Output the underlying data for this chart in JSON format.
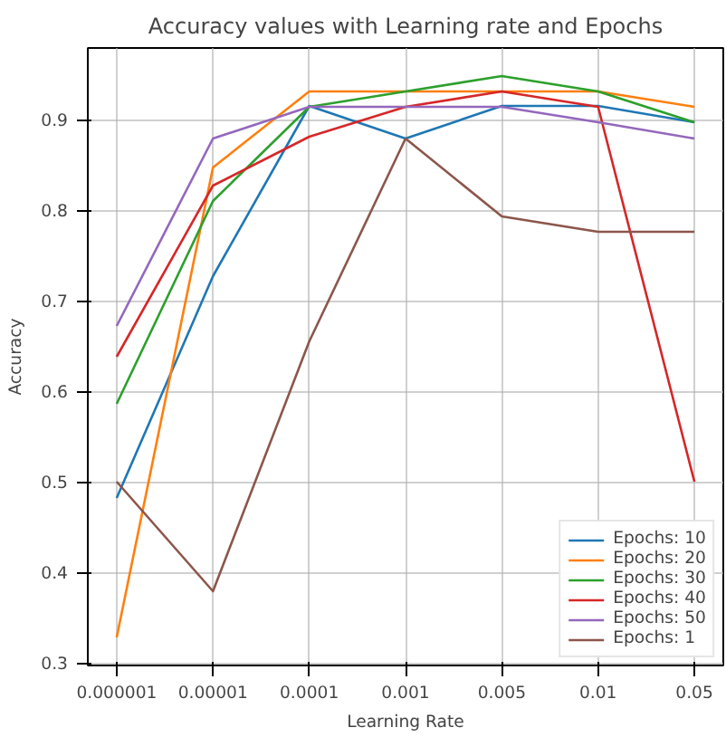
{
  "chart_data": {
    "type": "line",
    "title": "Accuracy values with Learning rate and Epochs",
    "xlabel": "Learning Rate",
    "ylabel": "Accuracy",
    "categories": [
      "0.000001",
      "0.00001",
      "0.0001",
      "0.001",
      "0.005",
      "0.01",
      "0.05"
    ],
    "ylim": [
      0.297,
      0.979
    ],
    "yticks": [
      {
        "value": 0.3,
        "label": "0.3"
      },
      {
        "value": 0.4,
        "label": "0.4"
      },
      {
        "value": 0.5,
        "label": "0.5"
      },
      {
        "value": 0.6,
        "label": "0.6"
      },
      {
        "value": 0.7,
        "label": "0.7"
      },
      {
        "value": 0.8,
        "label": "0.8"
      },
      {
        "value": 0.9,
        "label": "0.9"
      }
    ],
    "grid": true,
    "legend": "bottom right",
    "series": [
      {
        "name": "Epochs: 10",
        "color": "#1f77b4",
        "values": [
          0.482,
          0.727,
          0.915,
          0.879,
          0.915,
          0.915,
          0.897
        ]
      },
      {
        "name": "Epochs: 20",
        "color": "#ff7f0e",
        "values": [
          0.328,
          0.847,
          0.931,
          0.931,
          0.931,
          0.931,
          0.914
        ]
      },
      {
        "name": "Epochs: 30",
        "color": "#2ca02c",
        "values": [
          0.586,
          0.81,
          0.914,
          0.931,
          0.948,
          0.931,
          0.897
        ]
      },
      {
        "name": "Epochs: 40",
        "color": "#d62728",
        "values": [
          0.638,
          0.827,
          0.881,
          0.914,
          0.931,
          0.914,
          0.5
        ]
      },
      {
        "name": "Epochs: 50",
        "color": "#9467bd",
        "values": [
          0.672,
          0.879,
          0.914,
          0.914,
          0.914,
          0.897,
          0.879
        ]
      },
      {
        "name": "Epochs: 1",
        "color": "#8c564b",
        "values": [
          0.5,
          0.379,
          0.655,
          0.879,
          0.793,
          0.776,
          0.776
        ]
      }
    ]
  }
}
